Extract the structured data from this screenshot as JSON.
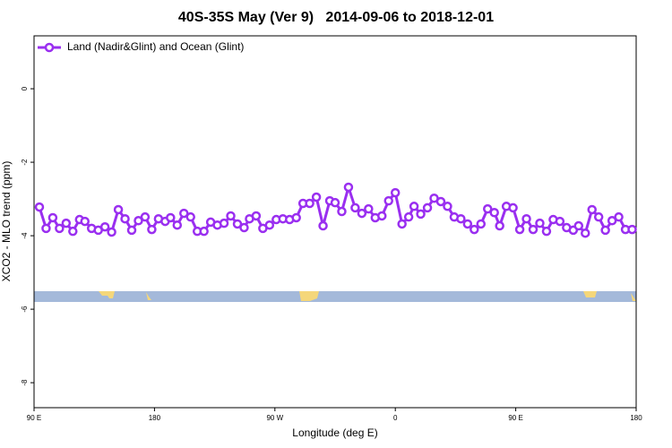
{
  "chart_data": {
    "type": "line",
    "title": "40S-35S May (Ver 9)   2014-09-06 to 2018-12-01",
    "xlabel": "Longitude (deg E)",
    "ylabel": "XCO2 - MLO trend (ppm)",
    "x": [
      94,
      99,
      104,
      109,
      114,
      119,
      124,
      128,
      133,
      138,
      143,
      148,
      153,
      158,
      163,
      168,
      173,
      178,
      183,
      188,
      192,
      197,
      202,
      207,
      212,
      217,
      222,
      227,
      232,
      237,
      242,
      247,
      251,
      256,
      261,
      266,
      271,
      276,
      281,
      286,
      291,
      296,
      301,
      306,
      311,
      315,
      320,
      325,
      330,
      335,
      340,
      345,
      350,
      355,
      360,
      365,
      370,
      374,
      379,
      384,
      389,
      394,
      399,
      404,
      409,
      414,
      419,
      424,
      429,
      434,
      438,
      443,
      448,
      453,
      458,
      463,
      468,
      473,
      478,
      483,
      488,
      493,
      497,
      502,
      507,
      512,
      517,
      522,
      527,
      532,
      537
    ],
    "series": [
      {
        "name": "Land (Nadir&Glint) and Ocean (Glint)",
        "color": "#9a2ff0",
        "values": [
          -3.22,
          -3.8,
          -3.51,
          -3.8,
          -3.66,
          -3.88,
          -3.56,
          -3.61,
          -3.8,
          -3.85,
          -3.76,
          -3.9,
          -3.29,
          -3.54,
          -3.85,
          -3.59,
          -3.49,
          -3.83,
          -3.54,
          -3.61,
          -3.51,
          -3.71,
          -3.39,
          -3.49,
          -3.88,
          -3.88,
          -3.63,
          -3.71,
          -3.66,
          -3.46,
          -3.68,
          -3.78,
          -3.54,
          -3.46,
          -3.8,
          -3.71,
          -3.56,
          -3.54,
          -3.56,
          -3.51,
          -3.12,
          -3.12,
          -2.95,
          -3.73,
          -3.05,
          -3.1,
          -3.34,
          -2.68,
          -3.24,
          -3.39,
          -3.27,
          -3.51,
          -3.46,
          -3.05,
          -2.83,
          -3.68,
          -3.49,
          -3.2,
          -3.41,
          -3.24,
          -2.98,
          -3.07,
          -3.2,
          -3.49,
          -3.54,
          -3.68,
          -3.83,
          -3.68,
          -3.27,
          -3.37,
          -3.73,
          -3.2,
          -3.24,
          -3.83,
          -3.54,
          -3.83,
          -3.66,
          -3.88,
          -3.56,
          -3.61,
          -3.78,
          -3.85,
          -3.73,
          -3.93,
          -3.29,
          -3.49,
          -3.85,
          -3.59,
          -3.49,
          -3.83,
          -3.83
        ]
      }
    ],
    "xlim": [
      90,
      540
    ],
    "xticks": [
      {
        "value": 90,
        "label": "90 E"
      },
      {
        "value": 180,
        "label": "180"
      },
      {
        "value": 270,
        "label": "90 W"
      },
      {
        "value": 360,
        "label": "0"
      },
      {
        "value": 450,
        "label": "90 E"
      },
      {
        "value": 540,
        "label": "180"
      }
    ],
    "ylim": [
      -8.68,
      1.44
    ],
    "yticks": [
      0,
      -2,
      -4,
      -6,
      -8
    ],
    "legend": "top-left"
  }
}
